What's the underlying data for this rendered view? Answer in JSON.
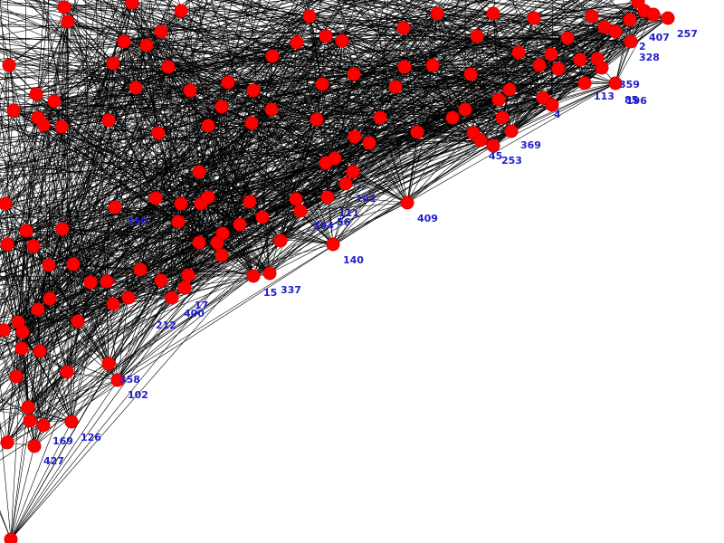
{
  "colors": {
    "background": "#ffffff",
    "edge": "#000000",
    "node": "#ff0000",
    "label": "#2020cc"
  },
  "labels": {
    "n409": "409",
    "n140": "140",
    "n337": "337",
    "n15": "15",
    "n17": "17",
    "n400": "400",
    "n102": "102",
    "n126": "126",
    "n169": "169",
    "n427": "427",
    "n369": "369",
    "n253": "253",
    "n45": "45",
    "n257": "257",
    "n407": "407",
    "n328": "328",
    "n113": "113",
    "n359": "359",
    "n196": "196",
    "n358": "358",
    "n212": "212",
    "n141": "141",
    "n394": "394",
    "n56": "56",
    "n111": "111",
    "n350": "350",
    "n2": "2",
    "n85": "85",
    "n4": "4"
  }
}
